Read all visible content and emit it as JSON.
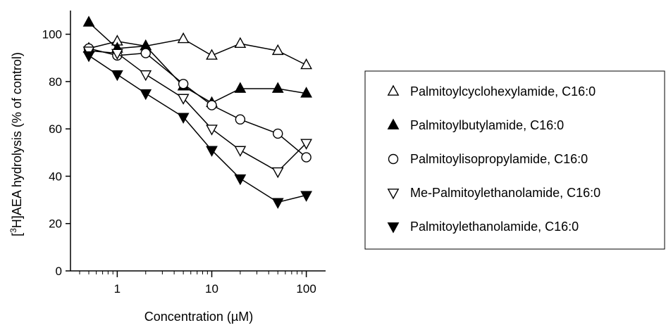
{
  "chart_data": {
    "type": "line",
    "xlabel": "Concentration (µM)",
    "ylabel_sup": "3",
    "ylabel_rest": "H]AEA hydrolysis (% of control)",
    "x_scale": "log",
    "xlim": [
      0.32,
      160
    ],
    "ylim": [
      0,
      110
    ],
    "x_ticks": [
      1,
      10,
      100
    ],
    "x_tick_labels": [
      "1",
      "10",
      "100"
    ],
    "y_ticks": [
      0,
      20,
      40,
      60,
      80,
      100
    ],
    "y_tick_labels": [
      "0",
      "20",
      "40",
      "60",
      "80",
      "100"
    ],
    "legend_position": "right",
    "series": [
      {
        "name": "Palmitoylcyclohexylamide, C16:0",
        "marker": "triangle-up-open",
        "x": [
          0.5,
          1,
          2,
          5,
          10,
          20,
          50,
          100
        ],
        "y": [
          94,
          97,
          95,
          98,
          91,
          96,
          93,
          87
        ]
      },
      {
        "name": "Palmitoylbutylamide, C16:0",
        "marker": "triangle-up-filled",
        "x": [
          0.5,
          1,
          2,
          5,
          10,
          20,
          50,
          100
        ],
        "y": [
          105,
          94,
          95,
          78,
          71,
          77,
          77,
          75
        ]
      },
      {
        "name": "Palmitoylisopropylamide, C16:0",
        "marker": "circle-open",
        "x": [
          0.5,
          1,
          2,
          5,
          10,
          20,
          50,
          100
        ],
        "y": [
          94,
          91,
          92,
          79,
          70,
          64,
          58,
          48
        ]
      },
      {
        "name": "Me-Palmitoylethanolamide, C16:0",
        "marker": "triangle-down-open",
        "x": [
          0.5,
          1,
          2,
          5,
          10,
          20,
          50,
          100
        ],
        "y": [
          93,
          92,
          83,
          73,
          60,
          51,
          42,
          54
        ]
      },
      {
        "name": "Palmitoylethanolamide, C16:0",
        "marker": "triangle-down-filled",
        "x": [
          0.5,
          1,
          2,
          5,
          10,
          20,
          50,
          100
        ],
        "y": [
          91,
          83,
          75,
          65,
          51,
          39,
          29,
          32
        ]
      }
    ]
  }
}
